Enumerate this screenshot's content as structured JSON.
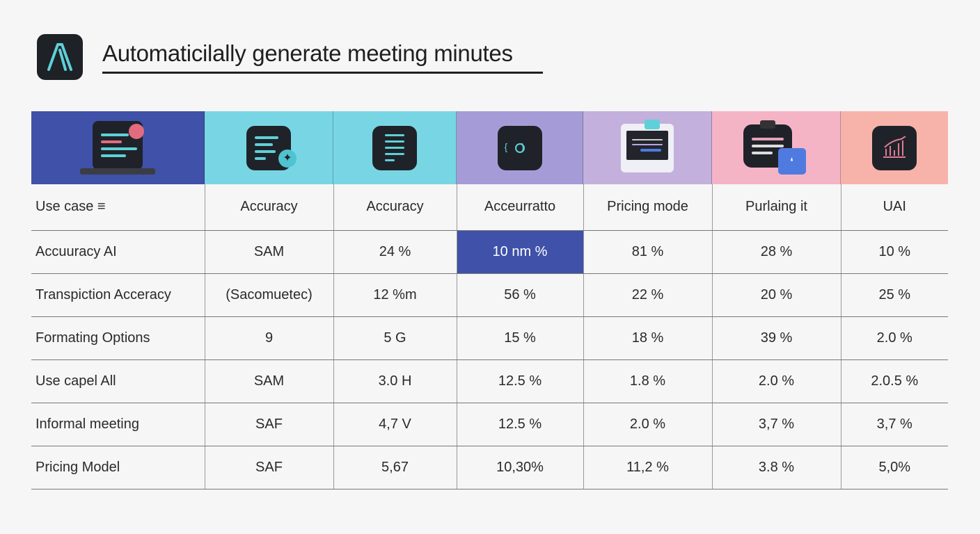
{
  "title": "Automaticilally generate meeting minutes",
  "logo_icon": "stylized-a-logo",
  "colors": {
    "accent": "#3f51a8",
    "teal": "#5fd0d8",
    "band": [
      "#3f51a8",
      "#78d6e4",
      "#78d6e4",
      "#a59cd7",
      "#c4b0dc",
      "#f5b4c6",
      "#f7b3aa"
    ]
  },
  "header_icons": [
    "laptop-chat-icon",
    "document-sparkle-icon",
    "document-icon",
    "ai-circuit-icon",
    "monitor-icon",
    "clipboard-chat-icon",
    "chart-icon"
  ],
  "table": {
    "headers": [
      "Use case ≡",
      "Accuracy",
      "Accuracy",
      "Acceurratto",
      "Pricing mode",
      "Purlaing it",
      "UAI"
    ],
    "rows": [
      [
        "Accuuracy AI",
        "SAM",
        "24 %",
        "10 nm %",
        "81 %",
        "28 %",
        "10 %"
      ],
      [
        "Transpiction Acceracy",
        "(Sacomuetec)",
        "12 %m",
        "56 %",
        "22 %",
        "20 %",
        "25 %"
      ],
      [
        "Formating Options",
        "9",
        "5 G",
        "15 %",
        "18 %",
        "39 %",
        "2.0 %"
      ],
      [
        "Use capel All",
        "SAM",
        "3.0 H",
        "12.5 %",
        "1.8 %",
        "2.0 %",
        "2.0.5 %"
      ],
      [
        "Informal meeting",
        "SAF",
        "4,7 V",
        "12.5 %",
        "2.0 %",
        "3,7 %",
        "3,7 %"
      ],
      [
        "Pricing Model",
        "SAF",
        "5,67",
        "10,30%",
        "11,2 %",
        "3.8 %",
        "5,0%"
      ]
    ],
    "highlighted_cell": "rows.0.3"
  }
}
